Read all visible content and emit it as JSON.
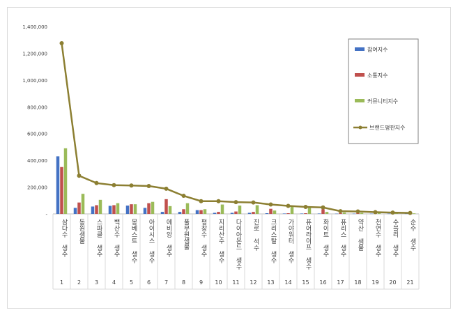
{
  "chart_data": {
    "type": "bar",
    "title": "",
    "xlabel": "",
    "ylabel": "",
    "ylim": [
      0,
      1400000
    ],
    "yticks": [
      0,
      200000,
      400000,
      600000,
      800000,
      1000000,
      1200000,
      1400000
    ],
    "ytick_labels": [
      "-",
      "200,000",
      "400,000",
      "600,000",
      "800,000",
      "1,000,000",
      "1,200,000",
      "1,400,000"
    ],
    "grid": false,
    "legend_position": "right",
    "categories": [
      "삼다수 생수",
      "동원샘물",
      "스파클 생수",
      "백산수 생수",
      "몽베스트 생수",
      "아이시스 생수",
      "에비앙 생수",
      "풀무원샘물",
      "평창수 생수",
      "지리산수 생수",
      "다이아몬드 생수",
      "진로 석수",
      "크리스탈 생수",
      "가야워터 생수",
      "퓨어라이프 생수",
      "화이트 생수",
      "퓨리스 생수",
      "약산 샘물",
      "천연수 생수",
      "수블리 생수",
      "순수 생수"
    ],
    "ranks": [
      "1",
      "2",
      "3",
      "4",
      "5",
      "6",
      "7",
      "8",
      "9",
      "10",
      "11",
      "12",
      "13",
      "14",
      "15",
      "16",
      "17",
      "18",
      "19",
      "20",
      "21"
    ],
    "series": [
      {
        "name": "참여지수",
        "type": "bar",
        "color": "#4472c4",
        "values": [
          430000,
          45000,
          55000,
          60000,
          62000,
          45000,
          15000,
          15000,
          28000,
          8000,
          8000,
          8000,
          5000,
          3000,
          3000,
          3000,
          2000,
          2000,
          2000,
          2000,
          2000
        ]
      },
      {
        "name": "소통지수",
        "type": "bar",
        "color": "#c0504d",
        "values": [
          350000,
          85000,
          65000,
          65000,
          72000,
          80000,
          110000,
          35000,
          28000,
          15000,
          18000,
          15000,
          38000,
          5000,
          5000,
          35000,
          5000,
          5000,
          5000,
          5000,
          5000
        ]
      },
      {
        "name": "커뮤니티지수",
        "type": "bar",
        "color": "#9bbb59",
        "values": [
          490000,
          150000,
          105000,
          80000,
          72000,
          90000,
          58000,
          80000,
          35000,
          70000,
          62000,
          65000,
          25000,
          55000,
          45000,
          15000,
          10000,
          8000,
          8000,
          5000,
          4000
        ]
      },
      {
        "name": "브랜드평판지수",
        "type": "line",
        "color": "#8c7f32",
        "values": [
          1275000,
          285000,
          230000,
          215000,
          212000,
          208000,
          188000,
          135000,
          95000,
          95000,
          88000,
          85000,
          70000,
          60000,
          52000,
          48000,
          20000,
          18000,
          13000,
          10000,
          7000
        ]
      }
    ]
  }
}
